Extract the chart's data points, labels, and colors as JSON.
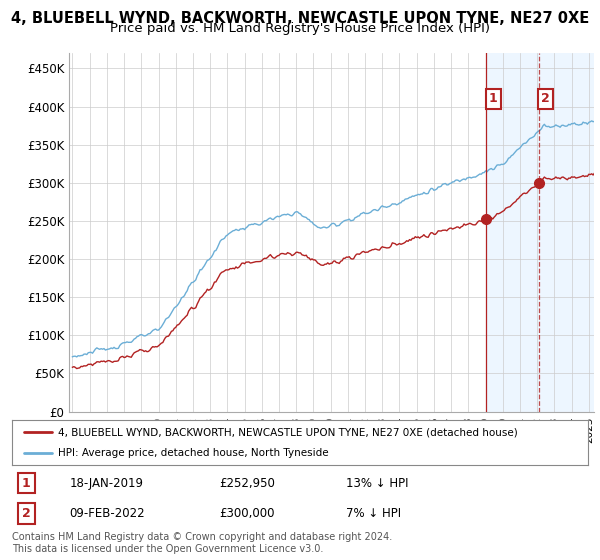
{
  "title": "4, BLUEBELL WYND, BACKWORTH, NEWCASTLE UPON TYNE, NE27 0XE",
  "subtitle": "Price paid vs. HM Land Registry's House Price Index (HPI)",
  "title_fontsize": 10.5,
  "subtitle_fontsize": 9.5,
  "ylabel_ticks": [
    "£0",
    "£50K",
    "£100K",
    "£150K",
    "£200K",
    "£250K",
    "£300K",
    "£350K",
    "£400K",
    "£450K"
  ],
  "ytick_values": [
    0,
    50000,
    100000,
    150000,
    200000,
    250000,
    300000,
    350000,
    400000,
    450000
  ],
  "ylim": [
    0,
    470000
  ],
  "xlim_start": 1994.8,
  "xlim_end": 2025.3,
  "hpi_color": "#6baed6",
  "price_color": "#b22222",
  "marker1_date": 2019.04,
  "marker1_price": 252950,
  "marker1_label": "18-JAN-2019",
  "marker1_price_str": "£252,950",
  "marker1_pct": "13% ↓ HPI",
  "marker2_date": 2022.1,
  "marker2_price": 300000,
  "marker2_label": "09-FEB-2022",
  "marker2_price_str": "£300,000",
  "marker2_pct": "7% ↓ HPI",
  "legend_line1": "4, BLUEBELL WYND, BACKWORTH, NEWCASTLE UPON TYNE, NE27 0XE (detached house)",
  "legend_line2": "HPI: Average price, detached house, North Tyneside",
  "footer": "Contains HM Land Registry data © Crown copyright and database right 2024.\nThis data is licensed under the Open Government Licence v3.0.",
  "footer_fontsize": 7.0,
  "background_color": "#ffffff",
  "grid_color": "#cccccc",
  "shade_color": "#ddeeff"
}
